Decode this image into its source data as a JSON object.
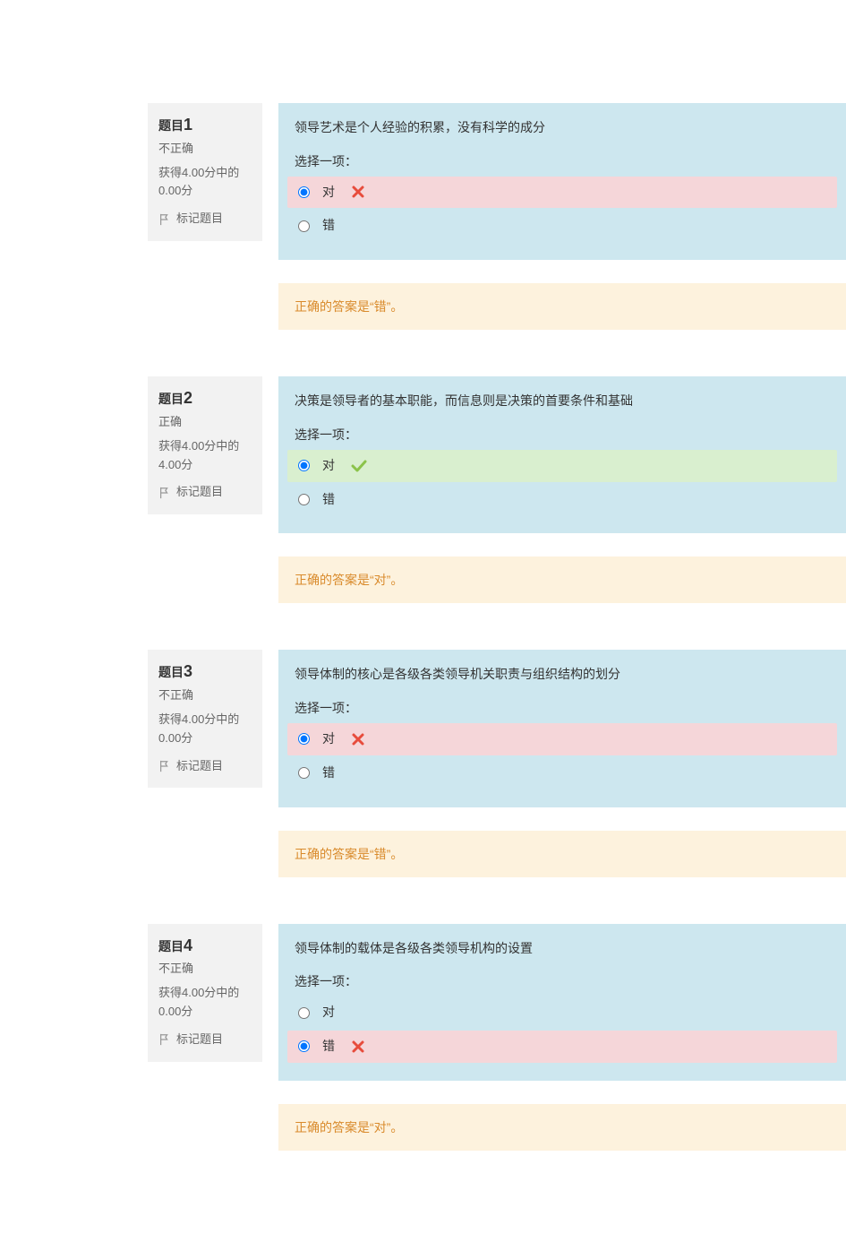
{
  "labels": {
    "question_prefix": "题目",
    "select_one": "选择一项：",
    "flag": "标记题目",
    "opt_true": "对",
    "opt_false": "错"
  },
  "colors": {
    "info_bg": "#f2f2f2",
    "content_bg": "#cde7ef",
    "wrong_bg": "#f5d6d9",
    "right_bg": "#d9efcf",
    "feedback_bg": "#fdf2dd",
    "feedback_text": "#d98a2b",
    "cross": "#e74c3c",
    "check": "#8bc34a",
    "flag_icon": "#999999"
  },
  "questions": [
    {
      "number": "1",
      "status": "不正确",
      "grade": "获得4.00分中的0.00分",
      "text": "领导艺术是个人经验的积累，没有科学的成分",
      "selected": "true",
      "selected_state": "wrong",
      "feedback": "正确的答案是“错”。"
    },
    {
      "number": "2",
      "status": "正确",
      "grade": "获得4.00分中的4.00分",
      "text": "决策是领导者的基本职能，而信息则是决策的首要条件和基础",
      "selected": "true",
      "selected_state": "right",
      "feedback": "正确的答案是“对”。"
    },
    {
      "number": "3",
      "status": "不正确",
      "grade": "获得4.00分中的0.00分",
      "text": "领导体制的核心是各级各类领导机关职责与组织结构的划分",
      "selected": "true",
      "selected_state": "wrong",
      "feedback": "正确的答案是“错”。"
    },
    {
      "number": "4",
      "status": "不正确",
      "grade": "获得4.00分中的0.00分",
      "text": "领导体制的载体是各级各类领导机构的设置",
      "selected": "false",
      "selected_state": "wrong",
      "feedback": "正确的答案是“对”。"
    }
  ]
}
